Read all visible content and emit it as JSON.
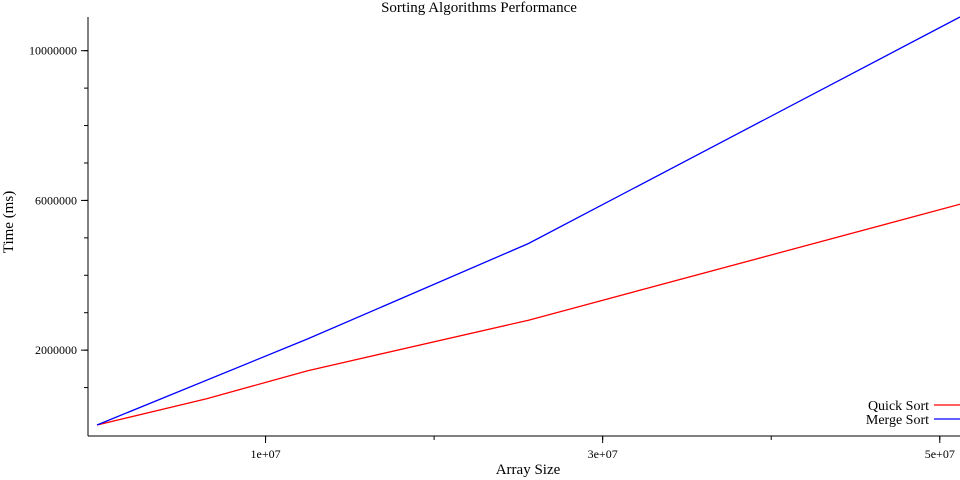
{
  "chart_data": {
    "type": "line",
    "title": "Sorting Algorithms Performance",
    "xlabel": "Array Size",
    "ylabel": "Time (ms)",
    "x_ticks": [
      {
        "value": 10000000,
        "label": "1e+07"
      },
      {
        "value": 30000000,
        "label": "3e+07"
      },
      {
        "value": 50000000,
        "label": "5e+07"
      }
    ],
    "y_ticks": [
      {
        "value": 2000000,
        "label": "2000000"
      },
      {
        "value": 6000000,
        "label": "6000000"
      },
      {
        "value": 10000000,
        "label": "10000000"
      }
    ],
    "xlim": [
      0,
      51200000
    ],
    "ylim": [
      0,
      10900000
    ],
    "grid": false,
    "legend_position": "bottom-right",
    "series": [
      {
        "name": "Quick Sort",
        "color": "#ff0000",
        "x": [
          0,
          6500000,
          12500000,
          25600000,
          51200000
        ],
        "y": [
          0,
          700000,
          1450000,
          2800000,
          5900000
        ]
      },
      {
        "name": "Merge Sort",
        "color": "#0000ff",
        "x": [
          0,
          12500000,
          25600000,
          51200000
        ],
        "y": [
          0,
          2300000,
          4850000,
          10900000
        ]
      }
    ]
  }
}
